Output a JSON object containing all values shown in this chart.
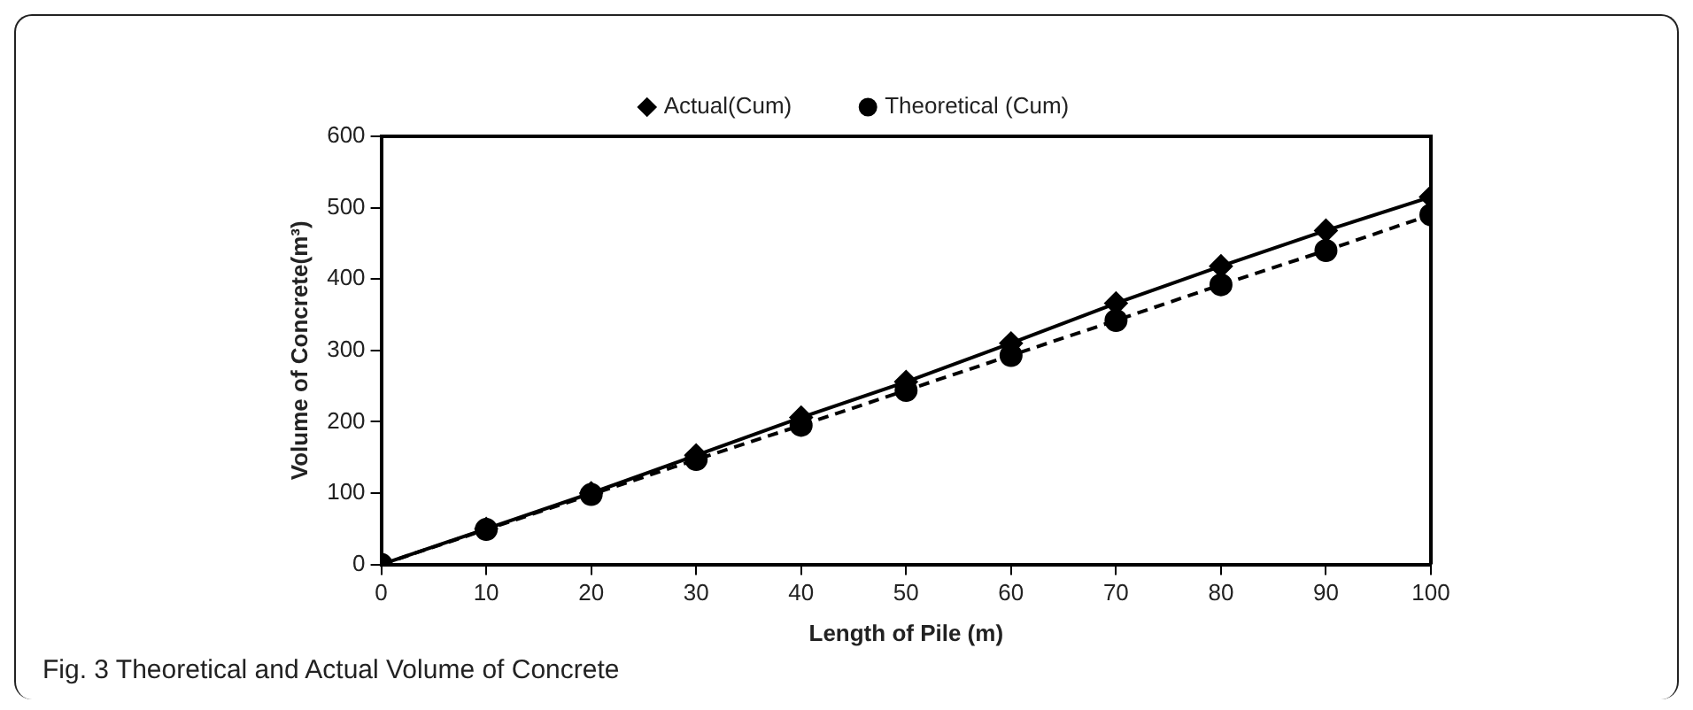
{
  "chart_data": {
    "type": "line",
    "xlabel": "Length of Pile (m)",
    "ylabel": "Volume of Concrete(m³)",
    "x": [
      0,
      10,
      20,
      30,
      40,
      50,
      60,
      70,
      80,
      90,
      100
    ],
    "series": [
      {
        "name": "Theoretical (Cum)",
        "color": "#000000",
        "marker": "circle",
        "line_style": "dashed",
        "values": [
          0,
          49,
          98,
          147,
          195,
          244,
          293,
          342,
          392,
          440,
          490
        ]
      },
      {
        "name": "Actual(Cum)",
        "color": "#000000",
        "marker": "diamond",
        "line_style": "solid",
        "values": [
          0,
          50,
          100,
          153,
          206,
          256,
          310,
          366,
          418,
          468,
          515
        ]
      }
    ],
    "xlim": [
      0,
      100
    ],
    "xticks": [
      0,
      10,
      20,
      30,
      40,
      50,
      60,
      70,
      80,
      90,
      100
    ],
    "ylim": [
      0,
      600
    ],
    "yticks": [
      0,
      100,
      200,
      300,
      400,
      500,
      600
    ],
    "grid": false,
    "legend": "top",
    "annotations": [
      "Fig. 3 Theoretical and Actual Volume of Concrete"
    ]
  }
}
